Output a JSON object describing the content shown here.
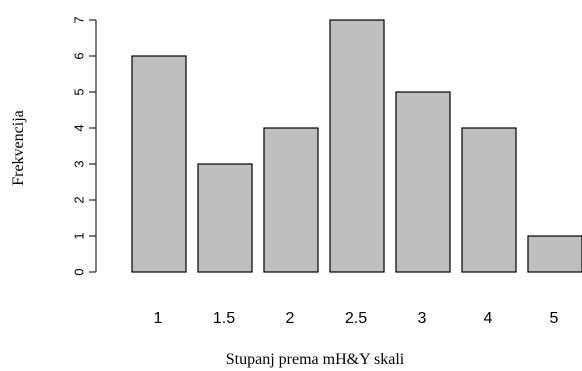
{
  "chart_data": {
    "type": "bar",
    "categories": [
      "1",
      "1.5",
      "2",
      "2.5",
      "3",
      "4",
      "5"
    ],
    "values": [
      6,
      3,
      4,
      7,
      5,
      4,
      1
    ],
    "title": "",
    "xlabel": "Stupanj prema mH&Y skali",
    "ylabel": "Frekvencija",
    "ylim": [
      0,
      7
    ],
    "yticks": [
      "0",
      "1",
      "2",
      "3",
      "4",
      "5",
      "6",
      "7"
    ],
    "bar_color": "#bebebe",
    "bar_outline": "#000000",
    "grid": false
  }
}
